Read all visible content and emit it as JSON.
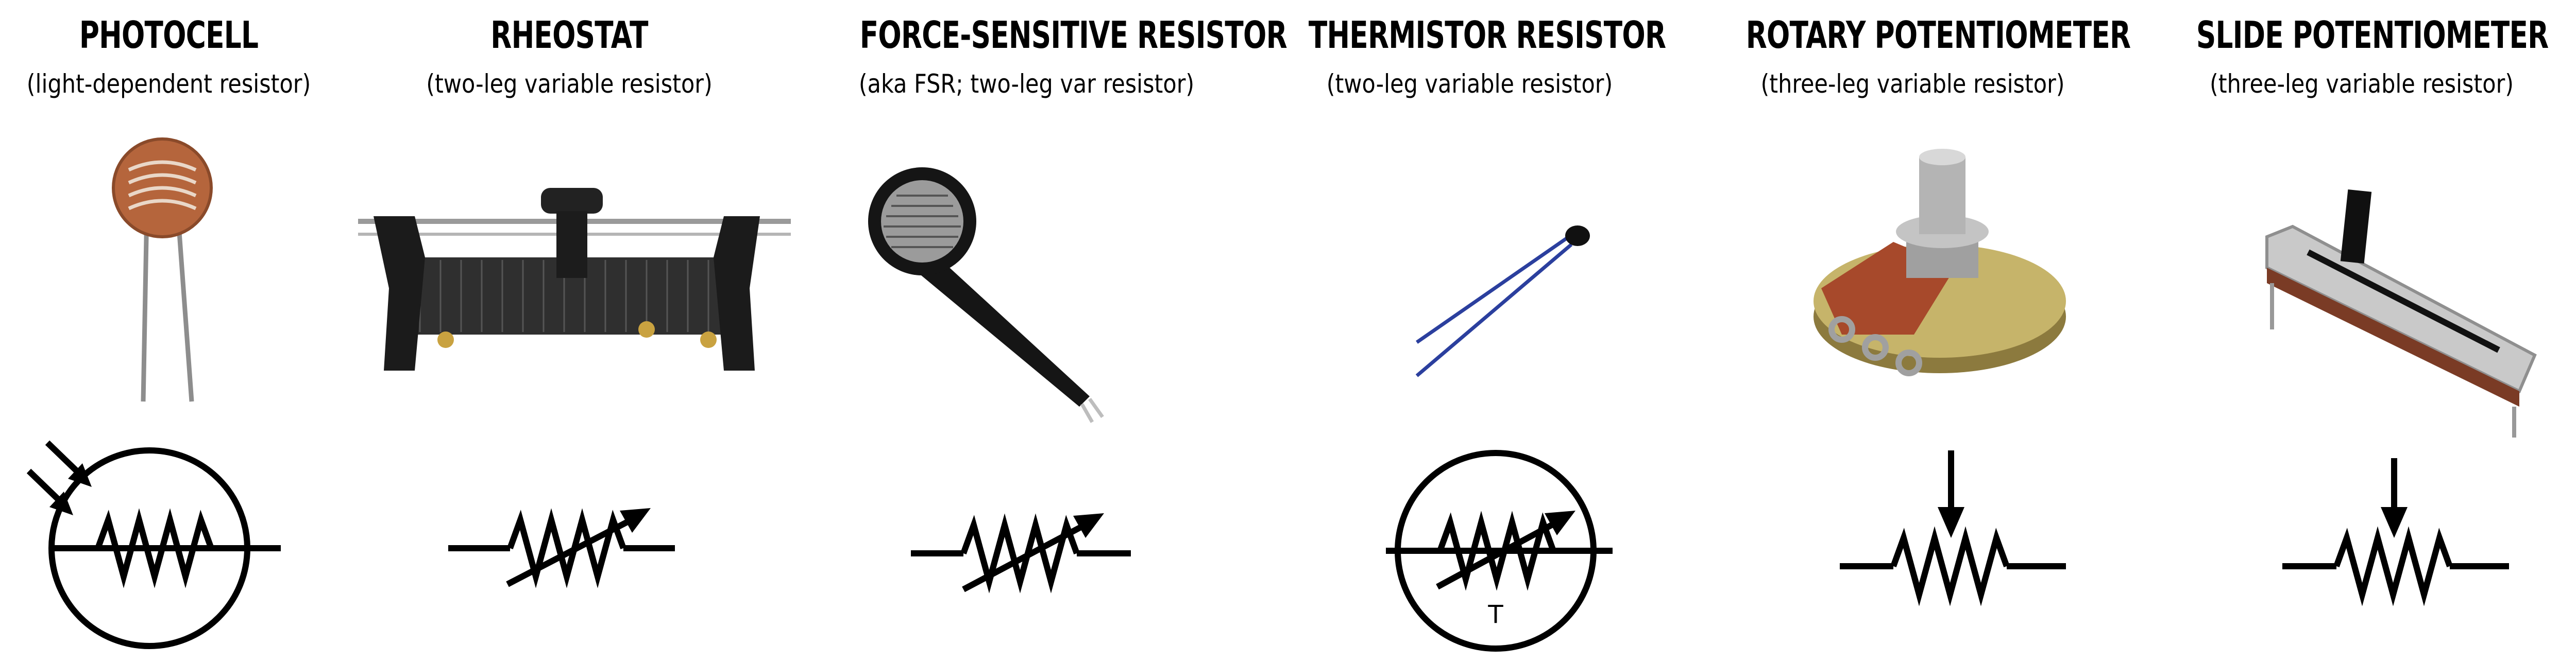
{
  "components": [
    {
      "title": "PHOTOCELL",
      "subtitle": "(light-dependent resistor)",
      "photo": "photocell-photo",
      "symbol": "photocell-symbol"
    },
    {
      "title": "RHEOSTAT",
      "subtitle": "(two-leg variable resistor)",
      "photo": "rheostat-photo",
      "symbol": "variable-resistor-symbol"
    },
    {
      "title": "FORCE-SENSITIVE RESISTOR",
      "subtitle": "(aka FSR; two-leg var resistor)",
      "photo": "fsr-photo",
      "symbol": "variable-resistor-symbol"
    },
    {
      "title": "THERMISTOR RESISTOR",
      "subtitle": "(two-leg variable resistor)",
      "photo": "thermistor-photo",
      "symbol": "thermistor-symbol",
      "symbol_label": "T"
    },
    {
      "title": "ROTARY POTENTIOMETER",
      "subtitle": "(three-leg variable resistor)",
      "photo": "rotary-potentiometer-photo",
      "symbol": "potentiometer-symbol"
    },
    {
      "title": "SLIDE POTENTIOMETER",
      "subtitle": "(three-leg variable resistor)",
      "photo": "slide-potentiometer-photo",
      "symbol": "potentiometer-symbol"
    }
  ],
  "colors": {
    "ink": "#000000",
    "thermistor_wire": "#2b3f9e",
    "copper": "#b5653c",
    "metal": "#b9b9b9"
  }
}
